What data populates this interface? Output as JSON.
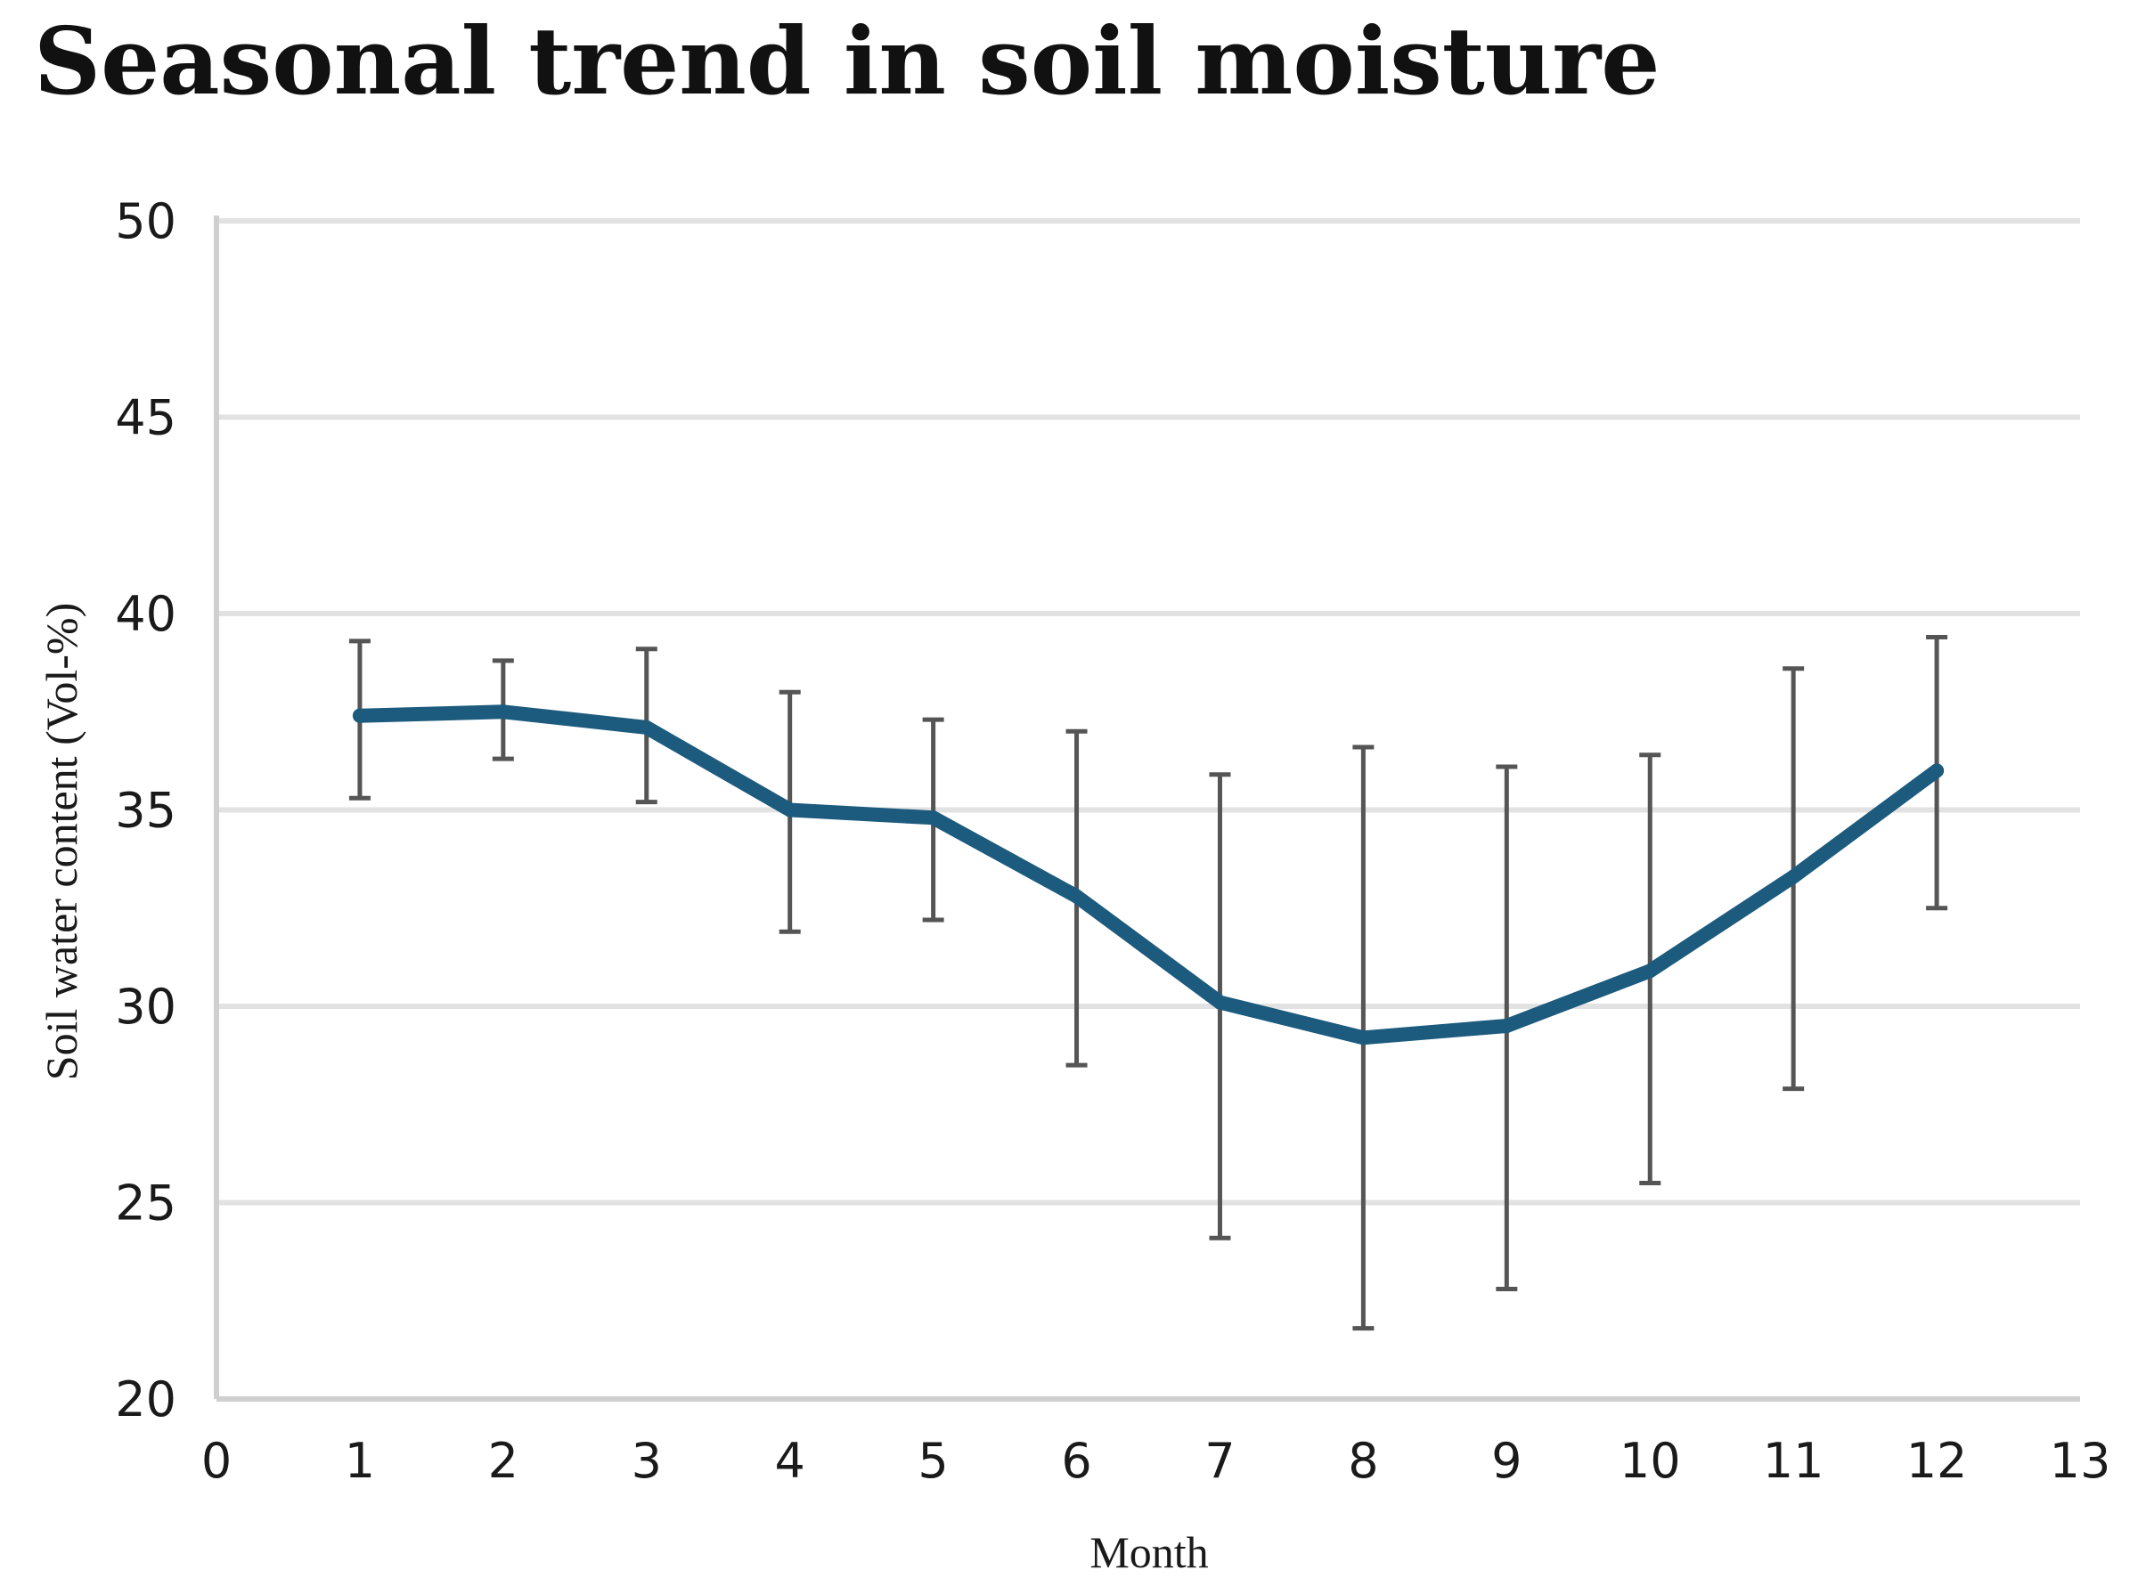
{
  "chart_data": {
    "type": "line",
    "title": "Seasonal trend in soil moisture",
    "xlabel": "Month",
    "ylabel": "Soil water content (Vol-%)",
    "xlim": [
      0,
      13
    ],
    "ylim": [
      20,
      50
    ],
    "x_ticks": [
      0,
      1,
      2,
      3,
      4,
      5,
      6,
      7,
      8,
      9,
      10,
      11,
      12,
      13
    ],
    "y_ticks": [
      20,
      25,
      30,
      35,
      40,
      45,
      50
    ],
    "grid": true,
    "legend": "none",
    "line_color": "#1d5b7e",
    "error_bar_color": "#555555",
    "series": [
      {
        "x": [
          1,
          2,
          3,
          4,
          5,
          6,
          7,
          8,
          9,
          10,
          11,
          12
        ],
        "values": [
          37.4,
          37.5,
          37.1,
          35.0,
          34.8,
          32.8,
          30.1,
          29.2,
          29.5,
          30.9,
          33.3,
          36.0
        ],
        "error_low": [
          35.3,
          36.3,
          35.2,
          31.9,
          32.2,
          28.5,
          24.1,
          21.8,
          22.8,
          25.5,
          27.9,
          32.5
        ],
        "error_high": [
          39.3,
          38.8,
          39.1,
          38.0,
          37.3,
          37.0,
          35.9,
          36.6,
          36.1,
          36.4,
          38.6,
          39.4
        ]
      }
    ]
  }
}
